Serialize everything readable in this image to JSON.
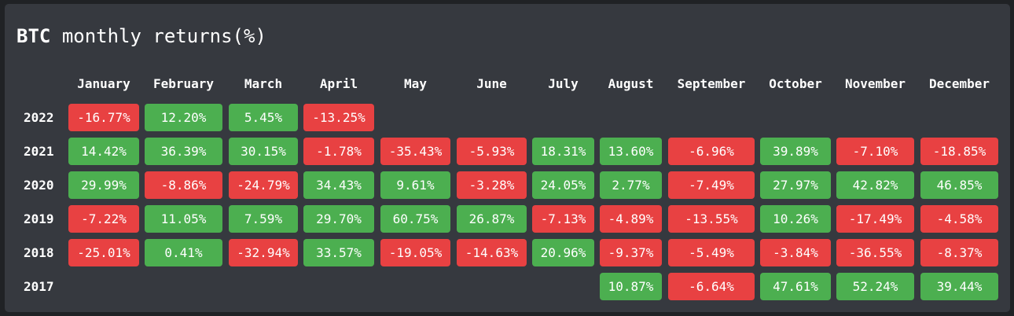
{
  "title": {
    "coin": "BTC",
    "text": "monthly returns(%)"
  },
  "colors": {
    "positive": "#4caf50",
    "negative": "#e84142",
    "background": "#36393f",
    "text": "#ffffff"
  },
  "chart_data": {
    "type": "heatmap",
    "title": "BTC monthly returns(%)",
    "columns": [
      "January",
      "February",
      "March",
      "April",
      "May",
      "June",
      "July",
      "August",
      "September",
      "October",
      "November",
      "December"
    ],
    "rows": [
      {
        "year": "2022",
        "values": [
          -16.77,
          12.2,
          5.45,
          -13.25,
          null,
          null,
          null,
          null,
          null,
          null,
          null,
          null
        ]
      },
      {
        "year": "2021",
        "values": [
          14.42,
          36.39,
          30.15,
          -1.78,
          -35.43,
          -5.93,
          18.31,
          13.6,
          -6.96,
          39.89,
          -7.1,
          -18.85
        ]
      },
      {
        "year": "2020",
        "values": [
          29.99,
          -8.86,
          -24.79,
          34.43,
          9.61,
          -3.28,
          24.05,
          2.77,
          -7.49,
          27.97,
          42.82,
          46.85
        ]
      },
      {
        "year": "2019",
        "values": [
          -7.22,
          11.05,
          7.59,
          29.7,
          60.75,
          26.87,
          -7.13,
          -4.89,
          -13.55,
          10.26,
          -17.49,
          -4.58
        ]
      },
      {
        "year": "2018",
        "values": [
          -25.01,
          0.41,
          -32.94,
          33.57,
          -19.05,
          -14.63,
          20.96,
          -9.37,
          -5.49,
          -3.84,
          -36.55,
          -8.37
        ]
      },
      {
        "year": "2017",
        "values": [
          null,
          null,
          null,
          null,
          null,
          null,
          null,
          10.87,
          -6.64,
          47.61,
          52.24,
          39.44
        ]
      }
    ],
    "value_suffix": "%",
    "color_rule": "positive green, negative red"
  }
}
